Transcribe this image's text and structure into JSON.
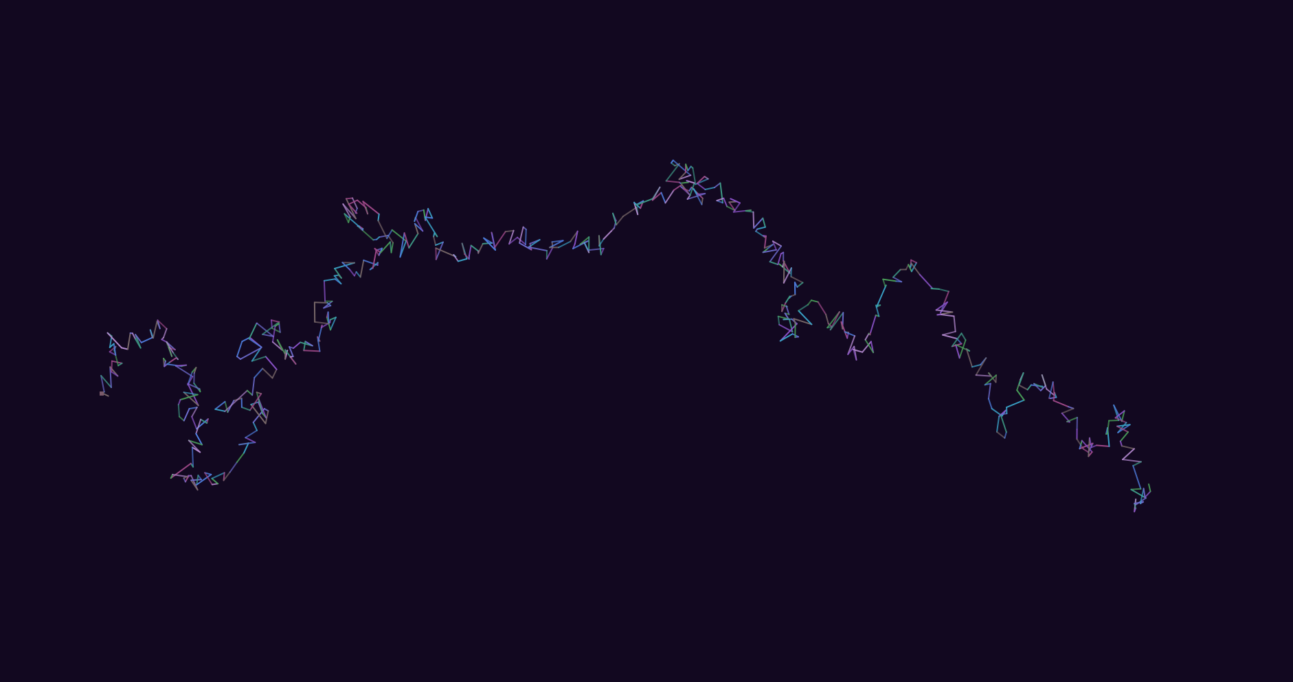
{
  "scene": {
    "background": "#120820",
    "palette": [
      "#4f7fe0",
      "#3aa3c8",
      "#3e9a86",
      "#8a52c8",
      "#6e6ed0",
      "#a04a8a",
      "#7a6a6a",
      "#4aa05a",
      "#b48ad0"
    ]
  }
}
